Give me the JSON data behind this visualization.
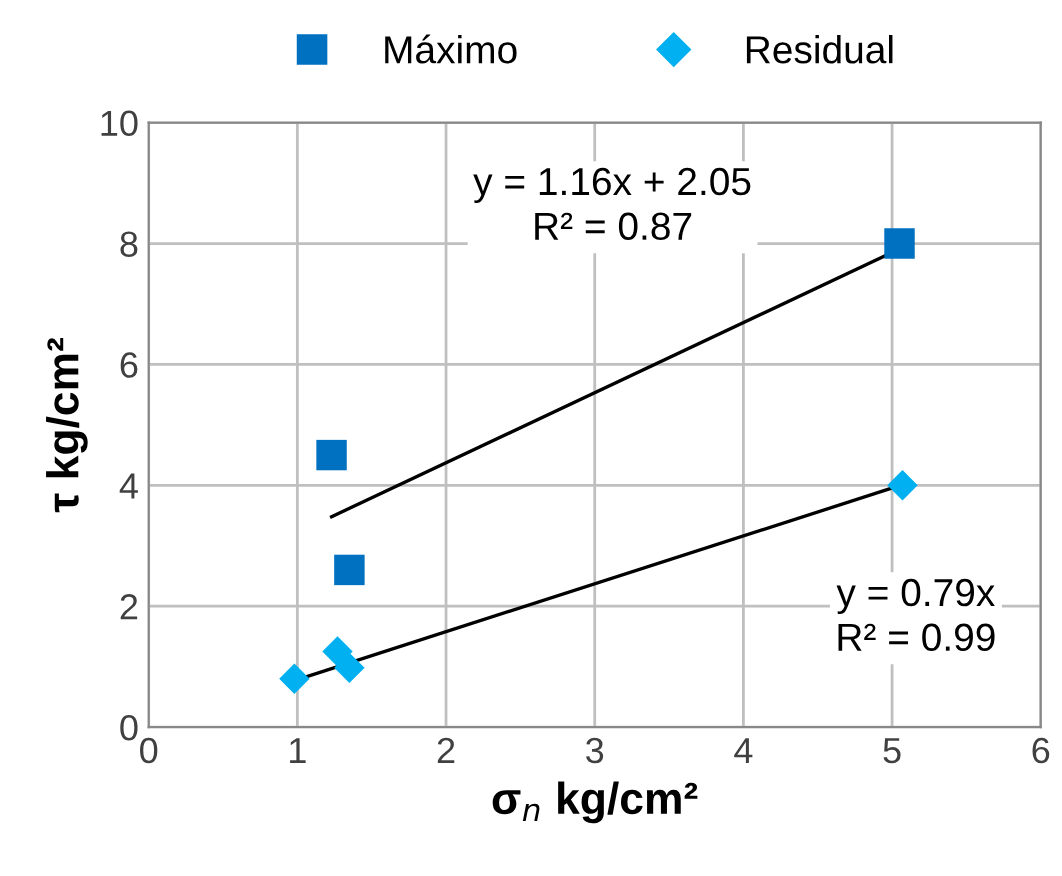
{
  "chart_data": {
    "type": "scatter",
    "xlabel": "σ$_{n}$ kg/cm²",
    "ylabel": "τ kg/cm²",
    "xlim": [
      0,
      6
    ],
    "ylim": [
      0,
      10
    ],
    "xticks": [
      0,
      1,
      2,
      3,
      4,
      5,
      6
    ],
    "yticks": [
      0,
      2,
      4,
      6,
      8,
      10
    ],
    "grid": true,
    "legend": "top",
    "series": [
      {
        "name": "Máximo",
        "color": "#0070c0",
        "marker": "square",
        "x": [
          1.23,
          1.35,
          5.05
        ],
        "values": [
          4.5,
          2.6,
          8.0
        ]
      },
      {
        "name": "Residual",
        "color": "#00b0f0",
        "marker": "diamond",
        "x": [
          0.98,
          1.27,
          1.35,
          5.07
        ],
        "values": [
          0.8,
          1.25,
          0.98,
          4.0
        ]
      },
      {
        "type": "line",
        "color": "#000000",
        "marker": "none",
        "x": [
          1.23,
          5.05
        ],
        "values": [
          3.48,
          7.91
        ]
      },
      {
        "type": "line",
        "color": "#000000",
        "marker": "none",
        "x": [
          0.98,
          5.07
        ],
        "values": [
          0.77,
          4.01
        ]
      }
    ],
    "annotations": [
      "y = 1.16x + 2.05\nR² = 0.87",
      "y = 0.79x\nR² = 0.99"
    ]
  }
}
